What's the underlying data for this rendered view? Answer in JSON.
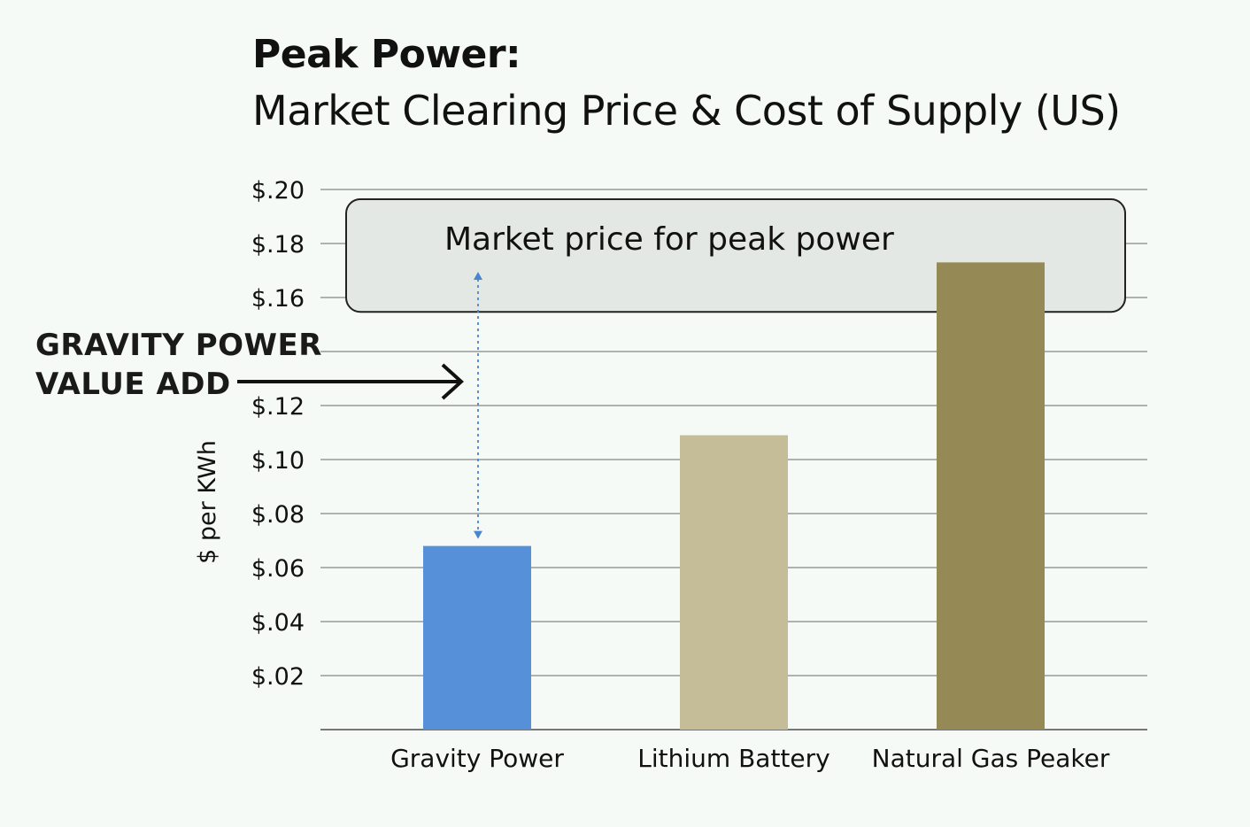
{
  "header": {
    "title": "Peak Power:",
    "subtitle": "Market Clearing Price & Cost of Supply (US)"
  },
  "annotation": {
    "line1": "GRAVITY POWER",
    "line2": "VALUE ADD"
  },
  "price_band_label": "Market price for peak power",
  "colors": {
    "gravity": "#5590d8",
    "lithium": "#c5bc98",
    "gas": "#958a55",
    "band_fill": "#e4e8e4",
    "arrow": "#4a86d0",
    "grid": "#999999"
  },
  "chart_data": {
    "type": "bar",
    "categories": [
      "Gravity Power",
      "Lithium Battery",
      "Natural Gas Peaker"
    ],
    "values": [
      0.068,
      0.109,
      0.173
    ],
    "ylabel": "$ per KWh",
    "ylim": [
      0,
      0.2
    ],
    "yticks": [
      0.02,
      0.04,
      0.06,
      0.08,
      0.1,
      0.12,
      0.14,
      0.16,
      0.18,
      0.2
    ],
    "ytick_labels": [
      "$.02",
      "$.04",
      "$.06",
      "$.08",
      "$.10",
      "$.12",
      "",
      "$.16",
      "$.18",
      "$.20"
    ],
    "market_price_band": [
      0.155,
      0.2
    ],
    "grid": true
  }
}
